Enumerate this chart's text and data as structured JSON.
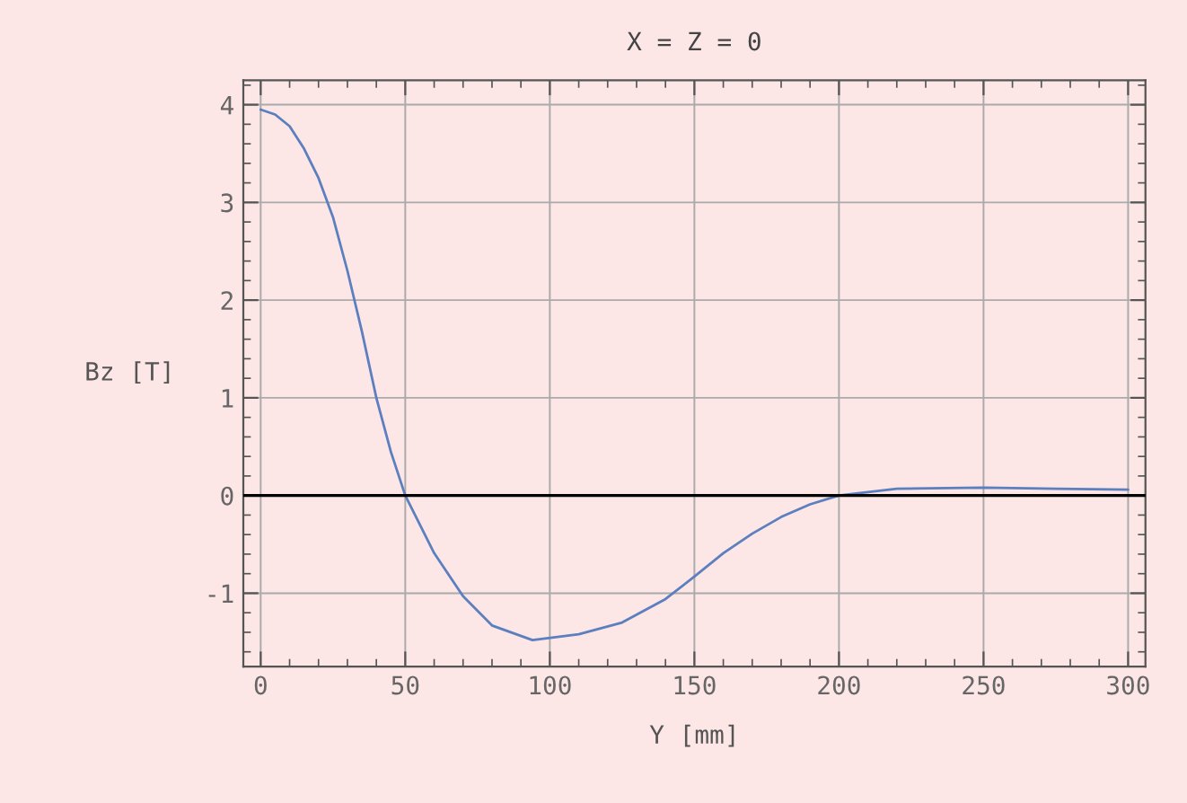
{
  "chart_data": {
    "type": "line",
    "title": "X = Z = 0",
    "xlabel": "Y [mm]",
    "ylabel": "Bz [T]",
    "x": [
      0,
      5,
      10,
      15,
      20,
      25,
      30,
      35,
      40,
      45,
      50,
      60,
      70,
      80,
      94,
      110,
      125,
      140,
      150,
      160,
      170,
      180,
      190,
      200,
      220,
      250,
      275,
      300
    ],
    "series": [
      {
        "color": "#5b7fbf",
        "values": [
          3.95,
          3.9,
          3.78,
          3.55,
          3.25,
          2.85,
          2.3,
          1.68,
          1.0,
          0.45,
          0.0,
          -0.59,
          -1.03,
          -1.33,
          -1.48,
          -1.42,
          -1.3,
          -1.06,
          -0.83,
          -0.59,
          -0.39,
          -0.22,
          -0.09,
          0.0,
          0.07,
          0.08,
          0.07,
          0.06
        ]
      }
    ],
    "xlim": [
      -6,
      306
    ],
    "ylim": [
      -1.75,
      4.25
    ],
    "xticks": [
      0,
      50,
      100,
      150,
      200,
      250,
      300
    ],
    "yticks": [
      -1,
      0,
      1,
      2,
      3,
      4
    ],
    "ref_lines": [
      {
        "axis": "y",
        "value": 0,
        "color": "#000000"
      }
    ],
    "grid": true,
    "marker": "none",
    "line_style": "solid",
    "legend": false
  }
}
